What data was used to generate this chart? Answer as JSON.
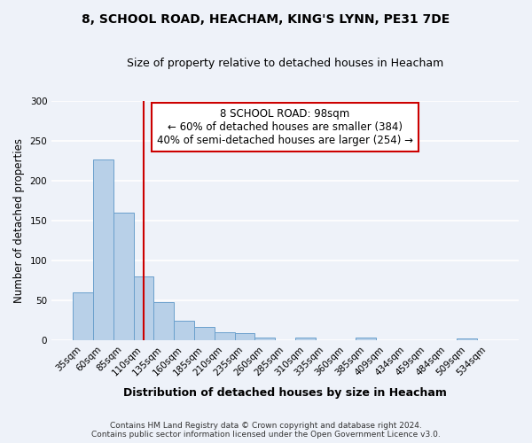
{
  "title": "8, SCHOOL ROAD, HEACHAM, KING'S LYNN, PE31 7DE",
  "subtitle": "Size of property relative to detached houses in Heacham",
  "xlabel": "Distribution of detached houses by size in Heacham",
  "ylabel": "Number of detached properties",
  "bar_labels": [
    "35sqm",
    "60sqm",
    "85sqm",
    "110sqm",
    "135sqm",
    "160sqm",
    "185sqm",
    "210sqm",
    "235sqm",
    "260sqm",
    "285sqm",
    "310sqm",
    "335sqm",
    "360sqm",
    "385sqm",
    "409sqm",
    "434sqm",
    "459sqm",
    "484sqm",
    "509sqm",
    "534sqm"
  ],
  "bar_values": [
    60,
    227,
    160,
    80,
    48,
    25,
    17,
    10,
    9,
    4,
    0,
    3,
    0,
    0,
    3,
    0,
    0,
    0,
    0,
    2,
    0
  ],
  "bar_color": "#b8d0e8",
  "bar_edge_color": "#6aa0cc",
  "vline_color": "#cc0000",
  "annotation_line1": "8 SCHOOL ROAD: 98sqm",
  "annotation_line2": "← 60% of detached houses are smaller (384)",
  "annotation_line3": "40% of semi-detached houses are larger (254) →",
  "annotation_box_color": "#cc0000",
  "ylim": [
    0,
    300
  ],
  "yticks": [
    0,
    50,
    100,
    150,
    200,
    250,
    300
  ],
  "footer_line1": "Contains HM Land Registry data © Crown copyright and database right 2024.",
  "footer_line2": "Contains public sector information licensed under the Open Government Licence v3.0.",
  "background_color": "#eef2f9",
  "grid_color": "#ffffff"
}
